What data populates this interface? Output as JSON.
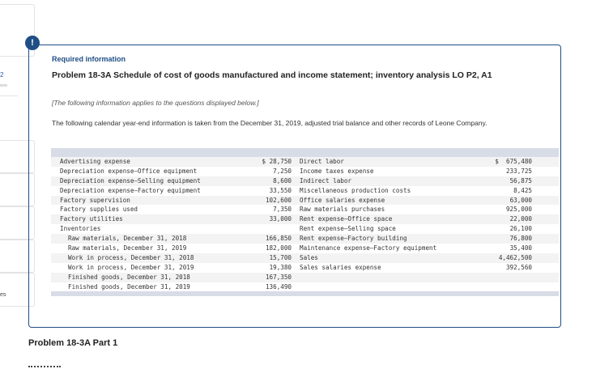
{
  "sidebar": {
    "number": "2",
    "truncated_label": "es"
  },
  "info": {
    "badge": "!",
    "required_label": "Required information",
    "title": "Problem 18-3A Schedule of cost of goods manufactured and income statement; inventory analysis LO P2, A1",
    "note": "[The following information applies to the questions displayed below.]",
    "description": "The following calendar year-end information is taken from the December 31, 2019, adjusted trial balance and other records of Leone Company."
  },
  "table": {
    "rows": [
      {
        "left_label": "Advertising expense",
        "left_amount": "$ 28,750",
        "right_label": "Direct labor",
        "right_amount": "$  675,480"
      },
      {
        "left_label": "Depreciation expense—Office equipment",
        "left_amount": "7,250",
        "right_label": "Income taxes expense",
        "right_amount": "233,725"
      },
      {
        "left_label": "Depreciation expense—Selling equipment",
        "left_amount": "8,600",
        "right_label": "Indirect labor",
        "right_amount": "56,875"
      },
      {
        "left_label": "Depreciation expense—Factory equipment",
        "left_amount": "33,550",
        "right_label": "Miscellaneous production costs",
        "right_amount": "8,425"
      },
      {
        "left_label": "Factory supervision",
        "left_amount": "102,600",
        "right_label": "Office salaries expense",
        "right_amount": "63,000"
      },
      {
        "left_label": "Factory supplies used",
        "left_amount": "7,350",
        "right_label": "Raw materials purchases",
        "right_amount": "925,000"
      },
      {
        "left_label": "Factory utilities",
        "left_amount": "33,000",
        "right_label": "Rent expense—Office space",
        "right_amount": "22,000"
      },
      {
        "left_label": "Inventories",
        "left_amount": "",
        "right_label": "Rent expense—Selling space",
        "right_amount": "26,100"
      },
      {
        "left_label": "Raw materials, December 31, 2018",
        "left_amount": "166,850",
        "right_label": "Rent expense—Factory building",
        "right_amount": "76,800"
      },
      {
        "left_label": "Raw materials, December 31, 2019",
        "left_amount": "182,000",
        "right_label": "Maintenance expense—Factory equipment",
        "right_amount": "35,400"
      },
      {
        "left_label": "Work in process, December 31, 2018",
        "left_amount": "15,700",
        "right_label": "Sales",
        "right_amount": "4,462,500"
      },
      {
        "left_label": "Work in process, December 31, 2019",
        "left_amount": "19,380",
        "right_label": "Sales salaries expense",
        "right_amount": "392,560"
      },
      {
        "left_label": "Finished goods, December 31, 2018",
        "left_amount": "167,350",
        "right_label": "",
        "right_amount": ""
      },
      {
        "left_label": "Finished goods, December 31, 2019",
        "left_amount": "136,490",
        "right_label": "",
        "right_amount": ""
      }
    ]
  },
  "part": {
    "title": "Problem 18-3A Part 1"
  },
  "colors": {
    "accent": "#1f4e85",
    "table_header": "#d8dce6",
    "row_alt": "#f3f3f3"
  }
}
